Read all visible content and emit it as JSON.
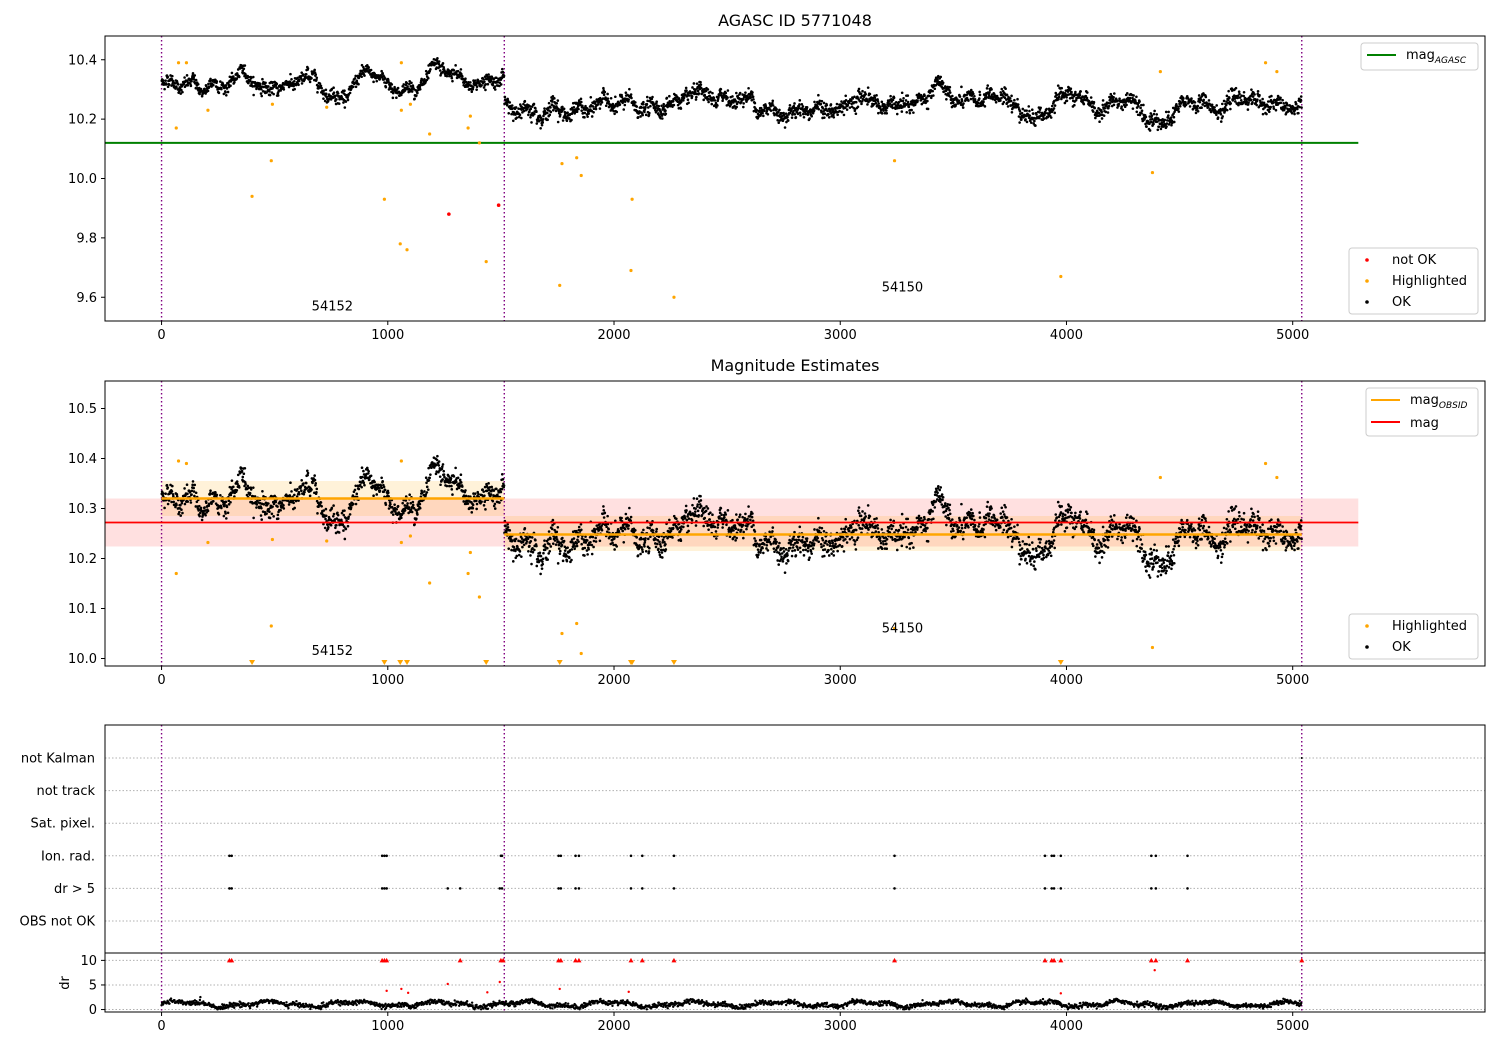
{
  "colors": {
    "ok": "#000000",
    "highlighted": "#ffa500",
    "not_ok": "#ff0000",
    "mag_agasc": "#008000",
    "mag_obsid": "#ffa500",
    "mag": "#ff0000",
    "obsid_boundary": "#800080",
    "grid": "#b0b0b0"
  },
  "chart_data": [
    {
      "type": "scatter",
      "title": "AGASC ID 5771048",
      "xlim": [
        -250,
        5850
      ],
      "ylim": [
        9.52,
        10.48
      ],
      "x_ticks": [
        0,
        1000,
        2000,
        3000,
        4000,
        5000
      ],
      "y_ticks": [
        9.6,
        9.8,
        10.0,
        10.2,
        10.4
      ],
      "y_tick_labels": [
        "9.6",
        "9.8",
        "10.0",
        "10.2",
        "10.4"
      ],
      "obsid_boundaries": [
        0,
        1515,
        5040
      ],
      "obsid_labels": [
        {
          "text": "54152",
          "x": 755,
          "y": 9.555
        },
        {
          "text": "54150",
          "x": 3275,
          "y": 9.62
        }
      ],
      "mag_agasc": {
        "value": 10.12,
        "x_range": [
          -250,
          5290
        ]
      },
      "segments": [
        {
          "x_start": 0,
          "x_end": 1515,
          "mean": 10.32,
          "noise": 0.022
        },
        {
          "x_start": 1515,
          "x_end": 5040,
          "mean": 10.245,
          "noise": 0.028
        }
      ],
      "highlighted_points": [
        [
          65,
          10.17
        ],
        [
          75,
          10.39
        ],
        [
          110,
          10.39
        ],
        [
          205,
          10.23
        ],
        [
          400,
          9.94
        ],
        [
          485,
          10.06
        ],
        [
          490,
          10.25
        ],
        [
          730,
          10.24
        ],
        [
          985,
          9.93
        ],
        [
          1055,
          9.78
        ],
        [
          1060,
          10.23
        ],
        [
          1085,
          9.76
        ],
        [
          1100,
          10.25
        ],
        [
          1185,
          10.15
        ],
        [
          1355,
          10.17
        ],
        [
          1365,
          10.21
        ],
        [
          1405,
          10.12
        ],
        [
          1435,
          9.72
        ],
        [
          1760,
          9.64
        ],
        [
          1770,
          10.05
        ],
        [
          1835,
          10.07
        ],
        [
          1855,
          10.01
        ],
        [
          2075,
          9.69
        ],
        [
          2080,
          9.93
        ],
        [
          2265,
          9.6
        ],
        [
          3240,
          10.06
        ],
        [
          3975,
          9.67
        ],
        [
          4380,
          10.02
        ],
        [
          4415,
          10.36
        ],
        [
          4880,
          10.39
        ],
        [
          4930,
          10.36
        ],
        [
          1060,
          10.39
        ]
      ],
      "not_ok_points": [
        [
          1270,
          9.88
        ],
        [
          1490,
          9.91
        ]
      ],
      "legend_lines": [
        {
          "label": "mag",
          "subscript": "AGASC"
        }
      ],
      "legend_points": [
        "not OK",
        "Highlighted",
        "OK"
      ]
    },
    {
      "type": "scatter",
      "title": "Magnitude Estimates",
      "xlim": [
        -250,
        5850
      ],
      "ylim": [
        9.985,
        10.555
      ],
      "x_ticks": [
        0,
        1000,
        2000,
        3000,
        4000,
        5000
      ],
      "y_ticks": [
        10.0,
        10.1,
        10.2,
        10.3,
        10.4,
        10.5
      ],
      "y_tick_labels": [
        "10.0",
        "10.1",
        "10.2",
        "10.3",
        "10.4",
        "10.5"
      ],
      "obsid_boundaries": [
        0,
        1515,
        5040
      ],
      "obsid_labels": [
        {
          "text": "54152",
          "x": 755,
          "y": 10.007
        },
        {
          "text": "54150",
          "x": 3275,
          "y": 10.052
        }
      ],
      "mag": {
        "value": 10.272,
        "band": [
          10.224,
          10.32
        ],
        "x_range": [
          -250,
          5290
        ]
      },
      "mag_obsid": [
        {
          "x_start": 0,
          "x_end": 1515,
          "value": 10.32,
          "band": [
            10.285,
            10.355
          ]
        },
        {
          "x_start": 1515,
          "x_end": 5040,
          "value": 10.248,
          "band": [
            10.215,
            10.285
          ]
        }
      ],
      "highlighted_points": [
        [
          65,
          10.17
        ],
        [
          75,
          10.395
        ],
        [
          110,
          10.39
        ],
        [
          205,
          10.232
        ],
        [
          485,
          10.065
        ],
        [
          490,
          10.238
        ],
        [
          730,
          10.235
        ],
        [
          1060,
          10.232
        ],
        [
          1060,
          10.395
        ],
        [
          1100,
          10.245
        ],
        [
          1185,
          10.151
        ],
        [
          1355,
          10.17
        ],
        [
          1365,
          10.212
        ],
        [
          1405,
          10.123
        ],
        [
          1770,
          10.05
        ],
        [
          1835,
          10.07
        ],
        [
          1855,
          10.01
        ],
        [
          3240,
          10.06
        ],
        [
          4380,
          10.022
        ],
        [
          4415,
          10.362
        ],
        [
          4880,
          10.39
        ],
        [
          4930,
          10.362
        ]
      ],
      "clipped_below": [
        400,
        985,
        1055,
        1085,
        1435,
        1760,
        2075,
        2080,
        2265,
        3975
      ],
      "legend_lines": [
        {
          "label": "mag",
          "subscript": "OBSID"
        },
        {
          "label": "mag",
          "subscript": ""
        }
      ],
      "legend_points": [
        "Highlighted",
        "OK"
      ]
    },
    {
      "type": "scatter",
      "xlim": [
        -250,
        5850
      ],
      "categories": [
        "not Kalman",
        "not track",
        "Sat. pixel.",
        "Ion. rad.",
        "dr > 5",
        "OBS not OK"
      ],
      "ion_rad_x": [
        300,
        310,
        975,
        985,
        995,
        1500,
        1505,
        1755,
        1765,
        1830,
        1845,
        2075,
        2125,
        2265,
        3240,
        3905,
        3935,
        3945,
        3975,
        4375,
        4395,
        4535
      ],
      "dr_gt_5_x": [
        300,
        310,
        975,
        985,
        995,
        1265,
        1320,
        1495,
        1505,
        1755,
        1765,
        1830,
        1845,
        2075,
        2125,
        2265,
        3240,
        3905,
        3935,
        3945,
        3975,
        4375,
        4395,
        4535
      ],
      "not_kalman_x": [
        5040
      ]
    },
    {
      "type": "scatter",
      "ylabel": "dr",
      "xlim": [
        -250,
        5850
      ],
      "ylim": [
        -0.5,
        11.5
      ],
      "x_ticks": [
        0,
        1000,
        2000,
        3000,
        4000,
        5000
      ],
      "y_ticks": [
        0,
        5,
        10
      ],
      "y_tick_labels": [
        "0",
        "5",
        "10"
      ],
      "clip_value": 10,
      "clipped_x": [
        300,
        310,
        975,
        985,
        995,
        1320,
        1500,
        1510,
        1755,
        1765,
        1830,
        1845,
        2075,
        2125,
        2265,
        3240,
        3905,
        3935,
        3945,
        3975,
        4375,
        4395,
        4535,
        5040
      ],
      "outliers": [
        [
          995,
          3.8
        ],
        [
          1060,
          4.2
        ],
        [
          1090,
          3.4
        ],
        [
          1265,
          5.2
        ],
        [
          1440,
          3.5
        ],
        [
          1495,
          5.6
        ],
        [
          1760,
          4.2
        ],
        [
          2065,
          3.6
        ],
        [
          3975,
          3.3
        ],
        [
          4390,
          8.0
        ]
      ]
    }
  ]
}
